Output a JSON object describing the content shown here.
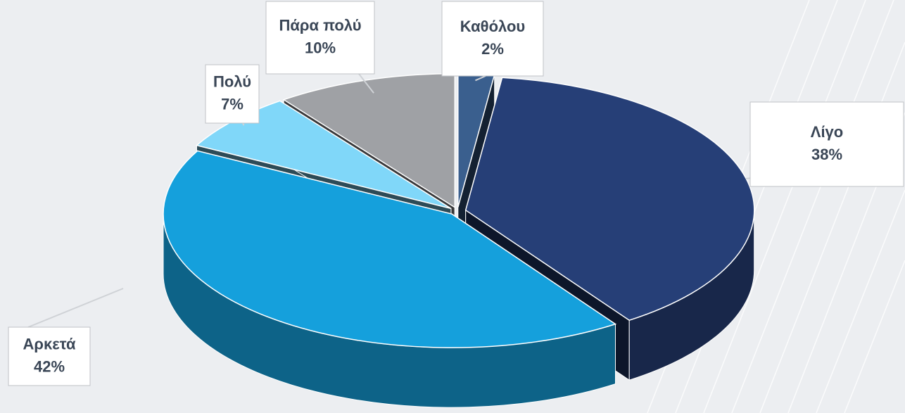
{
  "chart_data": {
    "type": "pie3d",
    "categories": [
      "Καθόλου",
      "Λίγο",
      "Αρκετά",
      "Πολύ",
      "Πάρα πολύ"
    ],
    "values": [
      2,
      38,
      42,
      7,
      10
    ],
    "value_labels": [
      "2%",
      "38%",
      "42%",
      "7%",
      "10%"
    ],
    "colors": [
      "#3a5f8e",
      "#263f77",
      "#15a0dc",
      "#80d7f9",
      "#9fa1a5"
    ]
  }
}
